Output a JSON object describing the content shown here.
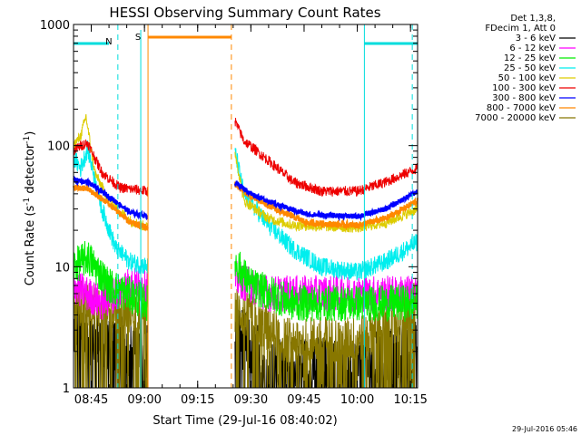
{
  "chart_data": {
    "type": "line",
    "title": "HESSI Observing Summary Count Rates",
    "xlabel": "Start Time (29-Jul-16 08:40:02)",
    "ylabel_main": "Count Rate (s",
    "ylabel_sup": "-1",
    "ylabel_mid": " detector",
    "ylabel_sup2": "-1",
    "ylabel_close": ")",
    "x_tick_labels": [
      "08:45",
      "09:00",
      "09:15",
      "09:30",
      "09:45",
      "10:00",
      "10:15"
    ],
    "x_tick_minutes": [
      5,
      20,
      35,
      50,
      65,
      80,
      95
    ],
    "xlim_minutes": [
      0,
      97
    ],
    "y_scale": "log",
    "ylim": [
      1,
      1000
    ],
    "y_tick_labels": [
      "1",
      "10",
      "100",
      "1000"
    ],
    "y_tick_values": [
      1,
      10,
      100,
      1000
    ],
    "legend_header": [
      "Det 1,3,8,",
      "FDecim 1, Att 0"
    ],
    "series": [
      {
        "name": "3 - 6 keV",
        "color": "#000000"
      },
      {
        "name": "6 - 12 keV",
        "color": "#ff00ff"
      },
      {
        "name": "12 - 25 keV",
        "color": "#00ee00"
      },
      {
        "name": "25 - 50 keV",
        "color": "#00eeee"
      },
      {
        "name": "50 - 100 keV",
        "color": "#ddcc00"
      },
      {
        "name": "100 - 300 keV",
        "color": "#ee0000"
      },
      {
        "name": "300 - 800 keV",
        "color": "#0000ff"
      },
      {
        "name": "800 - 7000 keV",
        "color": "#ff8800"
      },
      {
        "name": "7000 - 20000 keV",
        "color": "#887700"
      }
    ],
    "gaps_minutes": [
      [
        21,
        45.5
      ]
    ],
    "markers": {
      "night": {
        "label": "N",
        "color": "#00dddd",
        "dashed_minute": 12.5,
        "solid_minutes": [
          0,
          82
        ],
        "bar_until": 10,
        "bar_from": 82
      },
      "saa": {
        "label": "S",
        "color": "#ff8800",
        "solid_minute": 21,
        "dashed_minute": 44.5,
        "bar": [
          21,
          44.5
        ]
      }
    },
    "footer_date": "29-Jul-2016 05:46"
  }
}
